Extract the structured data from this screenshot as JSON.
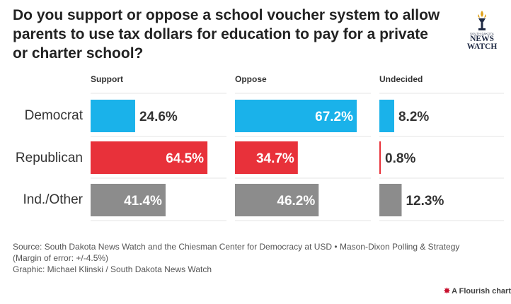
{
  "title": "Do you support or oppose a school voucher system to allow parents to use tax dollars for education to pay for a private or charter school?",
  "logo": {
    "small_text": "SOUTH DAKOTA",
    "big_text": "NEWS WATCH"
  },
  "chart_data": {
    "type": "bar",
    "orientation": "horizontal",
    "layout": "small-multiples",
    "title": "Do you support or oppose a school voucher system to allow parents to use tax dollars for education to pay for a private or charter school?",
    "categories": [
      "Democrat",
      "Republican",
      "Ind./Other"
    ],
    "category_colors": {
      "Democrat": "#1ab2ea",
      "Republican": "#e8313a",
      "Ind./Other": "#8c8c8c"
    },
    "series": [
      {
        "name": "Support",
        "values": [
          24.6,
          64.5,
          41.4
        ],
        "value_labels": [
          "24.6%",
          "64.5%",
          "41.4%"
        ]
      },
      {
        "name": "Oppose",
        "values": [
          67.2,
          34.7,
          46.2
        ],
        "value_labels": [
          "67.2%",
          "34.7%",
          "46.2%"
        ]
      },
      {
        "name": "Undecided",
        "values": [
          8.2,
          0.8,
          12.3
        ],
        "value_labels": [
          "8.2%",
          "0.8%",
          "12.3%"
        ]
      }
    ],
    "unit": "%",
    "xlim": [
      0,
      67.2
    ],
    "grid": true
  },
  "source_lines": [
    "Source: South Dakota News Watch and the Chiesman Center for Democracy at USD • Mason-Dixon Polling & Strategy",
    "(Margin of error: +/-4.5%)",
    "Graphic: Michael Klinski / South Dakota News Watch"
  ],
  "footer": {
    "credit": "A Flourish chart",
    "icon": "flourish-star-icon"
  }
}
